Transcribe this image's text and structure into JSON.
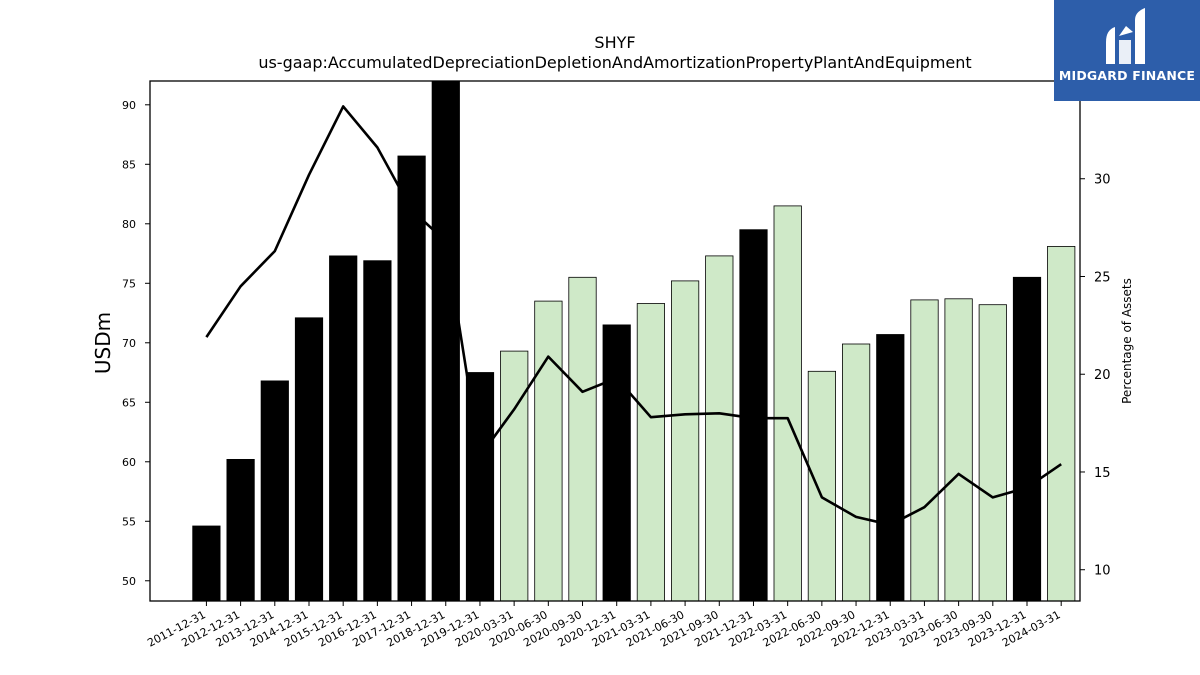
{
  "chart_data": {
    "type": "bar",
    "title": "SHYF",
    "subtitle": "us-gaap:AccumulatedDepreciationDepletionAndAmortizationPropertyPlantAndEquipment",
    "ylabel": "USDm",
    "y2label": "Percentage of Assets",
    "ylim": [
      48.3,
      92.0
    ],
    "y2lim": [
      8.4,
      35.0
    ],
    "yticks": [
      50,
      55,
      60,
      65,
      70,
      75,
      80,
      85,
      90
    ],
    "y2ticks": [
      10,
      15,
      20,
      25,
      30
    ],
    "grid": false,
    "categories": [
      "2011-12-31",
      "2012-12-31",
      "2013-12-31",
      "2014-12-31",
      "2015-12-31",
      "2016-12-31",
      "2017-12-31",
      "2018-12-31",
      "2019-12-31",
      "2020-03-31",
      "2020-06-30",
      "2020-09-30",
      "2020-12-31",
      "2021-03-31",
      "2021-06-30",
      "2021-09-30",
      "2021-12-31",
      "2022-03-31",
      "2022-06-30",
      "2022-09-30",
      "2022-12-31",
      "2023-03-31",
      "2023-06-30",
      "2023-09-30",
      "2023-12-31",
      "2024-03-31"
    ],
    "series": [
      {
        "kind": "bar",
        "values": [
          54.6,
          60.2,
          66.8,
          72.1,
          77.3,
          76.9,
          85.7,
          92.0,
          67.5,
          69.3,
          73.5,
          75.5,
          71.5,
          73.3,
          75.2,
          77.3,
          79.5,
          81.5,
          67.6,
          69.9,
          70.7,
          73.6,
          73.7,
          73.2,
          75.5,
          78.1
        ],
        "period": [
          "annual",
          "annual",
          "annual",
          "annual",
          "annual",
          "annual",
          "annual",
          "annual",
          "annual",
          "quarter",
          "quarter",
          "quarter",
          "annual",
          "quarter",
          "quarter",
          "quarter",
          "annual",
          "quarter",
          "quarter",
          "quarter",
          "annual",
          "quarter",
          "quarter",
          "quarter",
          "annual",
          "quarter"
        ]
      },
      {
        "kind": "line",
        "axis": "right",
        "values": [
          21.9,
          24.5,
          26.3,
          30.2,
          33.7,
          31.6,
          28.4,
          26.8,
          15.8,
          18.2,
          20.9,
          19.1,
          19.8,
          17.8,
          17.95,
          18.0,
          17.75,
          17.75,
          13.7,
          12.7,
          12.3,
          13.2,
          14.9,
          13.7,
          14.2,
          15.4
        ]
      }
    ],
    "colors": {
      "annual_bar": "#000000",
      "quarter_bar": "#cfe9c8",
      "line": "#000000"
    }
  },
  "logo": {
    "name": "MIDGARD FINANCE",
    "bg": "#2d5eaa"
  }
}
